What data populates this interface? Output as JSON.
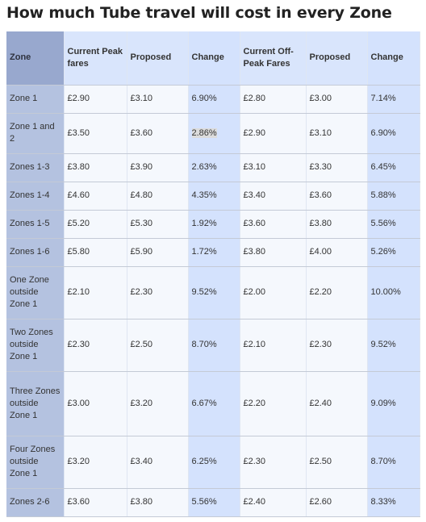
{
  "title": "How much Tube travel will cost in every Zone",
  "headers": {
    "zone": "Zone",
    "current_peak": "Current Peak fares",
    "proposed_peak": "Proposed",
    "change_peak": "Change",
    "current_offpeak": "Current Off-Peak Fares",
    "proposed_offpeak": "Proposed",
    "change_offpeak": "Change"
  },
  "rows": [
    {
      "zone": "Zone 1",
      "cp": "£2.90",
      "pp": "£3.10",
      "chp": "6.90%",
      "co": "£2.80",
      "po": "£3.00",
      "cho": "7.14%"
    },
    {
      "zone": "Zone 1 and 2",
      "cp": "£3.50",
      "pp": "£3.60",
      "chp": "2.86%",
      "co": "£2.90",
      "po": "£3.10",
      "cho": "6.90%"
    },
    {
      "zone": "Zones 1-3",
      "cp": "£3.80",
      "pp": "£3.90",
      "chp": "2.63%",
      "co": "£3.10",
      "po": "£3.30",
      "cho": "6.45%"
    },
    {
      "zone": "Zones 1-4",
      "cp": "£4.60",
      "pp": "£4.80",
      "chp": "4.35%",
      "co": "£3.40",
      "po": "£3.60",
      "cho": "5.88%"
    },
    {
      "zone": "Zones 1-5",
      "cp": "£5.20",
      "pp": "£5.30",
      "chp": "1.92%",
      "co": "£3.60",
      "po": "£3.80",
      "cho": "5.56%"
    },
    {
      "zone": "Zones 1-6",
      "cp": "£5.80",
      "pp": "£5.90",
      "chp": "1.72%",
      "co": "£3.80",
      "po": "£4.00",
      "cho": "5.26%"
    },
    {
      "zone": "One Zone outside Zone 1",
      "cp": "£2.10",
      "pp": "£2.30",
      "chp": "9.52%",
      "co": "£2.00",
      "po": "£2.20",
      "cho": "10.00%"
    },
    {
      "zone": "Two Zones outside Zone 1",
      "cp": "£2.30",
      "pp": "£2.50",
      "chp": "8.70%",
      "co": "£2.10",
      "po": "£2.30",
      "cho": "9.52%"
    },
    {
      "zone": "Three Zones outside Zone 1",
      "cp": "£3.00",
      "pp": "£3.20",
      "chp": "6.67%",
      "co": "£2.20",
      "po": "£2.40",
      "cho": "9.09%"
    },
    {
      "zone": "Four Zones outside Zone 1",
      "cp": "£3.20",
      "pp": "£3.40",
      "chp": "6.25%",
      "co": "£2.30",
      "po": "£2.50",
      "cho": "8.70%"
    },
    {
      "zone": "Zones 2-6",
      "cp": "£3.60",
      "pp": "£3.80",
      "chp": "5.56%",
      "co": "£2.40",
      "po": "£2.60",
      "cho": "8.33%"
    }
  ]
}
